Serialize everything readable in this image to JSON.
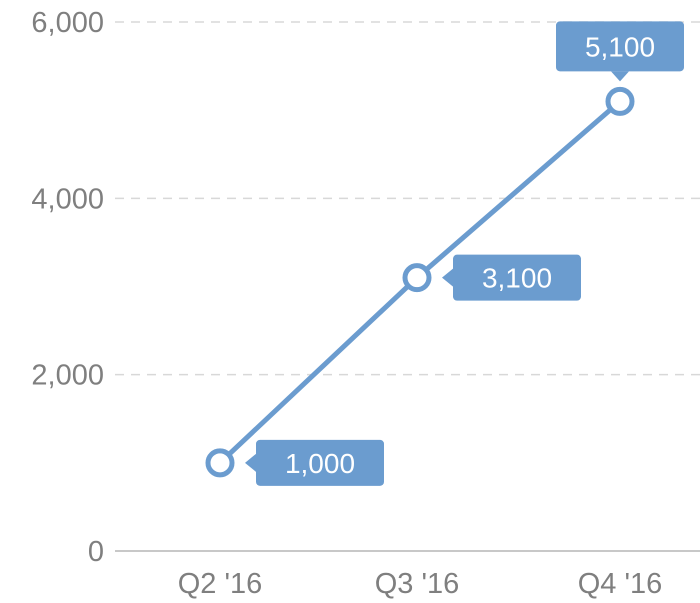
{
  "chart_data": {
    "type": "line",
    "x": [
      "Q2 '16",
      "Q3 '16",
      "Q4 '16"
    ],
    "series": [
      {
        "values": [
          1000,
          3100,
          5100
        ]
      }
    ],
    "data_labels": [
      "1,000",
      "3,100",
      "5,100"
    ],
    "ylim": [
      0,
      6000
    ],
    "y_ticks": [
      0,
      2000,
      4000,
      6000
    ],
    "y_tick_labels": [
      "0",
      "2,000",
      "4,000",
      "6,000"
    ],
    "grid": true,
    "colors": {
      "line": "#6b9ccf",
      "label_bg": "#6b9ccf",
      "axis": "#c8c8c8",
      "grid": "#d8d8d8",
      "text": "#7f7f7f"
    }
  }
}
